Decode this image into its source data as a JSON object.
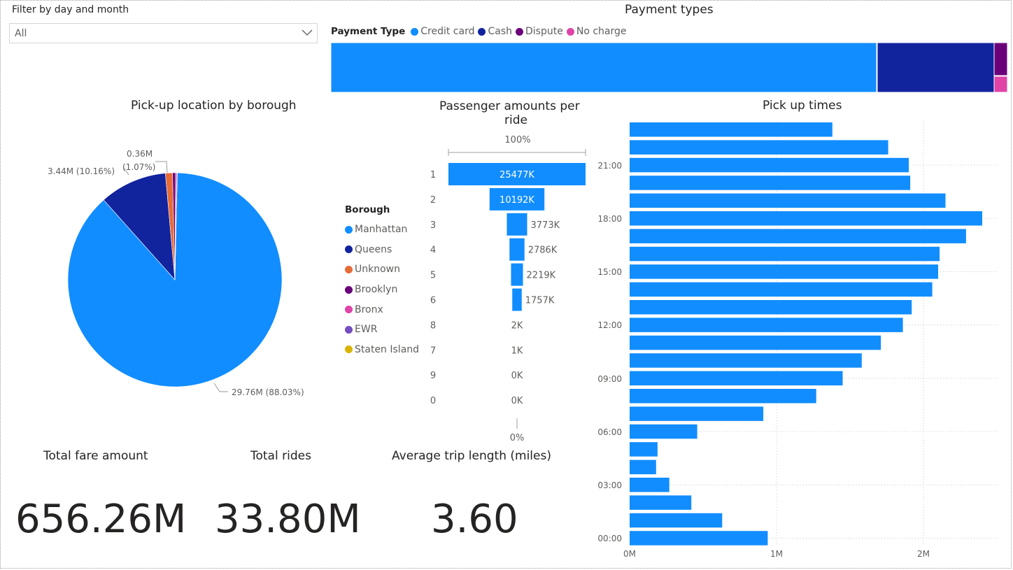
{
  "slicer": {
    "label": "Filter by day and month",
    "value": "All"
  },
  "payment_types": {
    "title": "Payment types",
    "legend_title": "Payment Type",
    "legend": [
      {
        "label": "Credit card",
        "color": "#118DFF"
      },
      {
        "label": "Cash",
        "color": "#12239E"
      },
      {
        "label": "Dispute",
        "color": "#6B007B"
      },
      {
        "label": "No charge",
        "color": "#E044A7"
      }
    ]
  },
  "pie": {
    "title": "Pick-up location by borough",
    "legend_title": "Borough",
    "legend": [
      {
        "label": "Manhattan",
        "color": "#118DFF"
      },
      {
        "label": "Queens",
        "color": "#12239E"
      },
      {
        "label": "Unknown",
        "color": "#E66C37"
      },
      {
        "label": "Brooklyn",
        "color": "#6B007B"
      },
      {
        "label": "Bronx",
        "color": "#E044A7"
      },
      {
        "label": "EWR",
        "color": "#744EC2"
      },
      {
        "label": "Staten Island",
        "color": "#D9B300"
      }
    ],
    "labels": {
      "manhattan": "29.76M (88.03%)",
      "queens": "3.44M (10.16%)",
      "unknown_value": "0.36M",
      "unknown_pct": "(1.07%)"
    }
  },
  "funnel": {
    "title_line1": "Passenger amounts per",
    "title_line2": "ride",
    "top_label": "100%",
    "bottom_label": "0%"
  },
  "pickup": {
    "title": "Pick up times",
    "y_ticks": [
      "21:00",
      "18:00",
      "15:00",
      "12:00",
      "09:00",
      "06:00",
      "03:00",
      "00:00"
    ],
    "x_ticks": [
      "0M",
      "1M",
      "2M"
    ]
  },
  "cards": {
    "fare_title": "Total fare amount",
    "fare_value": "656.26M",
    "rides_title": "Total rides",
    "rides_value": "33.80M",
    "trip_title": "Average trip length (miles)",
    "trip_value": "3.60"
  },
  "chart_data": [
    {
      "type": "bar",
      "orientation": "horizontal-stacked-100",
      "title": "Payment types",
      "categories": [
        "Credit card",
        "Cash",
        "Dispute",
        "No charge"
      ],
      "values": [
        80.7,
        17.3,
        1.3,
        0.7
      ],
      "unit": "percent (estimated)"
    },
    {
      "type": "pie",
      "title": "Pick-up location by borough",
      "categories": [
        "Manhattan",
        "Queens",
        "Unknown",
        "Brooklyn",
        "Bronx",
        "EWR",
        "Staten Island"
      ],
      "values": [
        29.76,
        3.44,
        0.36,
        0.15,
        0.07,
        0.01,
        0.01
      ],
      "unit": "M"
    },
    {
      "type": "bar",
      "orientation": "funnel",
      "title": "Passenger amounts per ride",
      "categories": [
        "1",
        "2",
        "3",
        "4",
        "5",
        "6",
        "8",
        "7",
        "9",
        "0"
      ],
      "values": [
        25477,
        10192,
        3773,
        2786,
        2219,
        1757,
        2,
        1,
        0,
        0
      ],
      "labels": [
        "25477K",
        "10192K",
        "3773K",
        "2786K",
        "2219K",
        "1757K",
        "2K",
        "1K",
        "0K",
        "0K"
      ],
      "unit": "K"
    },
    {
      "type": "bar",
      "orientation": "horizontal",
      "title": "Pick up times",
      "categories": [
        "23:00",
        "22:00",
        "21:00",
        "20:00",
        "19:00",
        "18:00",
        "17:00",
        "16:00",
        "15:00",
        "14:00",
        "13:00",
        "12:00",
        "11:00",
        "10:00",
        "09:00",
        "08:00",
        "07:00",
        "06:00",
        "05:00",
        "04:00",
        "03:00",
        "02:00",
        "01:00",
        "00:00"
      ],
      "values": [
        1.38,
        1.76,
        1.9,
        1.91,
        2.15,
        2.4,
        2.29,
        2.11,
        2.1,
        2.06,
        1.92,
        1.86,
        1.71,
        1.58,
        1.45,
        1.27,
        0.91,
        0.46,
        0.19,
        0.18,
        0.27,
        0.42,
        0.63,
        0.94
      ],
      "unit": "M",
      "xlim": [
        0,
        2.5
      ],
      "grid": true
    }
  ]
}
